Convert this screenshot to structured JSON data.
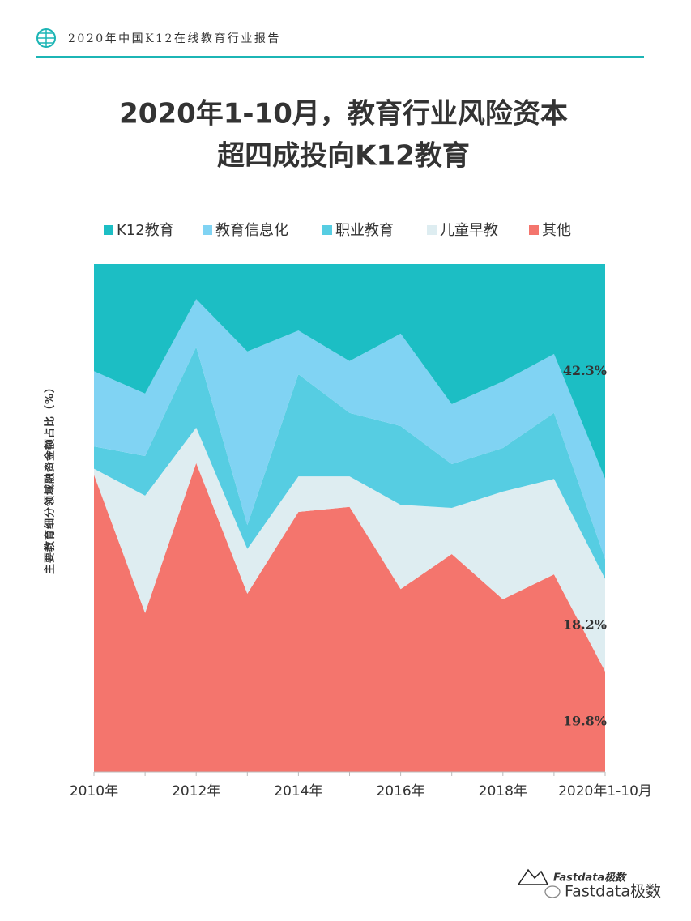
{
  "header": {
    "title": "2020年中国K12在线教育行业报告"
  },
  "chart_data": {
    "type": "stacked_area",
    "title": "2020年1-10月，教育行业风险资本",
    "subtitle": "超四成投向K12教育",
    "y_label": "主要教育细分领域融资金额占比（%）",
    "categories": [
      "2010年",
      null,
      "2012年",
      null,
      "2014年",
      null,
      "2016年",
      null,
      "2018年",
      null,
      "2020年1-10月"
    ],
    "ylim": [
      0,
      100
    ],
    "series": [
      {
        "name": "其他",
        "color": "#f4756d",
        "values": [
          58.5,
          31.3,
          60.8,
          35.1,
          51.2,
          52.2,
          36.0,
          42.9,
          34.0,
          38.9,
          19.8
        ],
        "value_labels": [
          null,
          null,
          null,
          null,
          null,
          null,
          null,
          null,
          null,
          null,
          "19.8%"
        ]
      },
      {
        "name": "儿童早教",
        "color": "#deedf1",
        "values": [
          1.2,
          23.1,
          7.0,
          8.8,
          7.0,
          6.0,
          16.6,
          9.1,
          21.2,
          18.8,
          18.2
        ],
        "value_labels": [
          null,
          null,
          null,
          null,
          null,
          null,
          null,
          null,
          null,
          null,
          "18.2%"
        ]
      },
      {
        "name": "职业教育",
        "color": "#56cde2",
        "values": [
          4.4,
          7.8,
          15.9,
          4.7,
          20.1,
          12.5,
          15.5,
          8.6,
          8.6,
          13.0,
          3.9
        ]
      },
      {
        "name": "教育信息化",
        "color": "#80d3f3",
        "values": [
          14.8,
          12.3,
          9.4,
          34.2,
          8.6,
          10.2,
          18.2,
          11.8,
          13.1,
          11.6,
          15.8
        ]
      },
      {
        "name": "K12教育",
        "color": "#1cbec4",
        "values": [
          21.1,
          25.5,
          6.9,
          17.2,
          13.1,
          19.1,
          13.7,
          27.6,
          23.1,
          17.7,
          42.3
        ],
        "value_labels": [
          null,
          null,
          null,
          null,
          null,
          null,
          null,
          null,
          null,
          null,
          "42.3%"
        ]
      }
    ]
  },
  "footer": {
    "logo_text": "Fastdata极数",
    "watermark": "Fastdata极数"
  }
}
